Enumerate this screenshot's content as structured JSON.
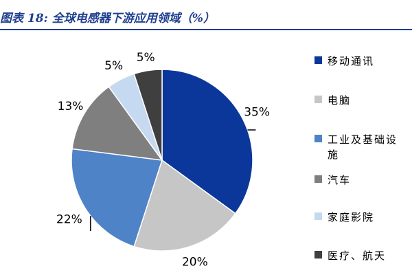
{
  "header": {
    "title": "图表 18: 全球电感器下游应用领域（%）"
  },
  "chart_data": {
    "type": "pie",
    "categories": [
      "移动通讯",
      "电脑",
      "工业及基础设施",
      "汽车",
      "家庭影院",
      "医疗、航天"
    ],
    "legend_labels": [
      "移动通讯",
      "电脑",
      "工业及基础设施",
      "汽车",
      "家庭影院",
      "医疗、航天"
    ],
    "values": [
      35,
      20,
      22,
      13,
      5,
      5
    ],
    "data_labels": [
      "35%",
      "20%",
      "22%",
      "13%",
      "5%",
      "5%"
    ],
    "colors": [
      "#0a3799",
      "#c6c6c6",
      "#4f83c8",
      "#7f7f7f",
      "#c5d9f1",
      "#3f3f3f"
    ],
    "legend_position": "right",
    "start_angle": "12 o'clock",
    "direction": "clockwise"
  }
}
